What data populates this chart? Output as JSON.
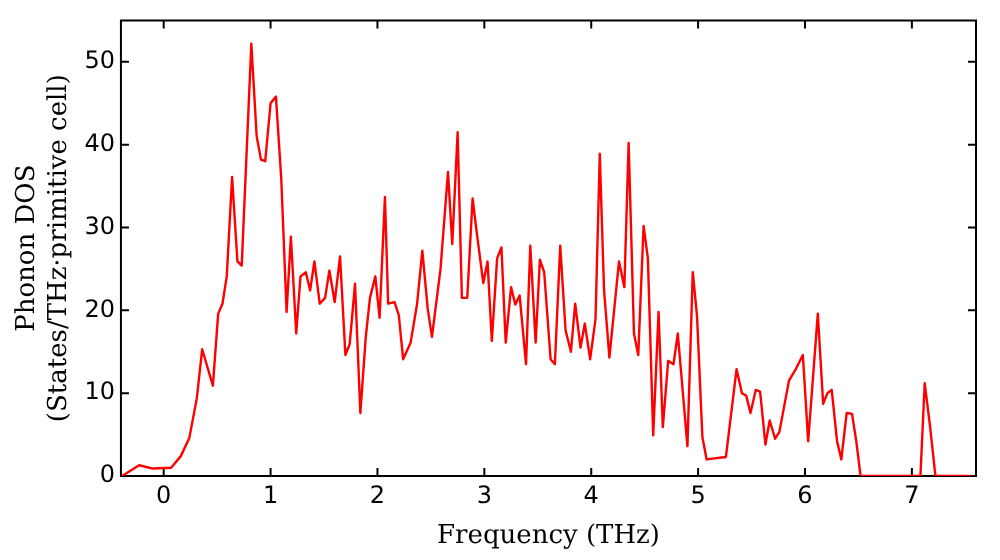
{
  "chart_data": {
    "type": "line",
    "xlabel": "Frequency (THz)",
    "ylabel": "Phonon DOS\n(States/THz·primitive cell)",
    "xlim": [
      -0.4,
      7.6
    ],
    "xticks": [
      0,
      1,
      2,
      3,
      4,
      5,
      6,
      7
    ],
    "ylim": [
      0,
      55
    ],
    "yticks": [
      0,
      10,
      20,
      30,
      40,
      50
    ],
    "grid": false,
    "legend": false,
    "marker": "none",
    "line_style": "solid",
    "series": [
      {
        "color": "#ff0000",
        "x": [
          -0.39,
          -0.23,
          -0.1,
          0.07,
          0.16,
          0.24,
          0.31,
          0.36,
          0.46,
          0.51,
          0.55,
          0.59,
          0.64,
          0.69,
          0.73,
          0.82,
          0.87,
          0.91,
          0.95,
          1.0,
          1.05,
          1.1,
          1.15,
          1.19,
          1.24,
          1.28,
          1.33,
          1.37,
          1.41,
          1.46,
          1.51,
          1.55,
          1.6,
          1.65,
          1.7,
          1.74,
          1.79,
          1.84,
          1.89,
          1.93,
          1.98,
          2.02,
          2.07,
          2.1,
          2.16,
          2.2,
          2.24,
          2.31,
          2.37,
          2.42,
          2.47,
          2.51,
          2.59,
          2.66,
          2.7,
          2.75,
          2.79,
          2.84,
          2.89,
          2.93,
          2.99,
          3.03,
          3.07,
          3.12,
          3.16,
          3.2,
          3.25,
          3.29,
          3.33,
          3.39,
          3.43,
          3.48,
          3.52,
          3.56,
          3.62,
          3.66,
          3.71,
          3.76,
          3.81,
          3.85,
          3.9,
          3.94,
          3.99,
          4.04,
          4.08,
          4.12,
          4.17,
          4.26,
          4.31,
          4.35,
          4.4,
          4.44,
          4.49,
          4.53,
          4.58,
          4.63,
          4.67,
          4.72,
          4.77,
          4.81,
          4.9,
          4.95,
          4.99,
          5.04,
          5.08,
          5.26,
          5.36,
          5.41,
          5.45,
          5.49,
          5.54,
          5.58,
          5.63,
          5.67,
          5.72,
          5.76,
          5.85,
          5.91,
          5.98,
          6.03,
          6.12,
          6.17,
          6.21,
          6.25,
          6.3,
          6.34,
          6.39,
          6.44,
          6.48,
          6.52,
          7.08,
          7.12,
          7.17,
          7.22,
          7.55
        ],
        "values": [
          0,
          1.3,
          0.9,
          1,
          2.4,
          4.6,
          9.4,
          15.3,
          10.9,
          19.6,
          20.8,
          24.1,
          36.1,
          25.9,
          25.4,
          52.2,
          41,
          38.2,
          38,
          45,
          45.8,
          35.9,
          19.8,
          28.9,
          17.2,
          24.1,
          24.6,
          22.4,
          25.9,
          20.8,
          21.5,
          24.8,
          21,
          26.5,
          14.6,
          15.9,
          23.2,
          7.6,
          16.7,
          21.5,
          24.1,
          19.1,
          33.7,
          20.8,
          21,
          19.4,
          14.1,
          16.1,
          20.7,
          27.2,
          20.2,
          16.8,
          25,
          36.7,
          28,
          41.5,
          21.5,
          21.5,
          33.5,
          29.3,
          23.3,
          25.9,
          16.3,
          26.3,
          27.6,
          16.1,
          22.8,
          20.7,
          21.8,
          13.5,
          27.8,
          16.1,
          26.1,
          24.6,
          14.1,
          13.5,
          27.8,
          17.6,
          15,
          20.8,
          15.5,
          18.4,
          14.1,
          18.9,
          38.9,
          22.4,
          14.3,
          25.9,
          22.8,
          40.2,
          17.2,
          14.6,
          30.2,
          26.3,
          4.9,
          19.8,
          5.9,
          13.9,
          13.5,
          17.2,
          3.6,
          24.6,
          19.3,
          4.7,
          2,
          2.3,
          12.9,
          10,
          9.7,
          7.6,
          10.4,
          10.2,
          3.8,
          6.7,
          4.5,
          5.3,
          11.5,
          12.8,
          14.6,
          4.2,
          19.6,
          8.7,
          10,
          10.4,
          4.2,
          2,
          7.6,
          7.5,
          4.2,
          0,
          0,
          11.2,
          6,
          0,
          0
        ]
      }
    ]
  }
}
